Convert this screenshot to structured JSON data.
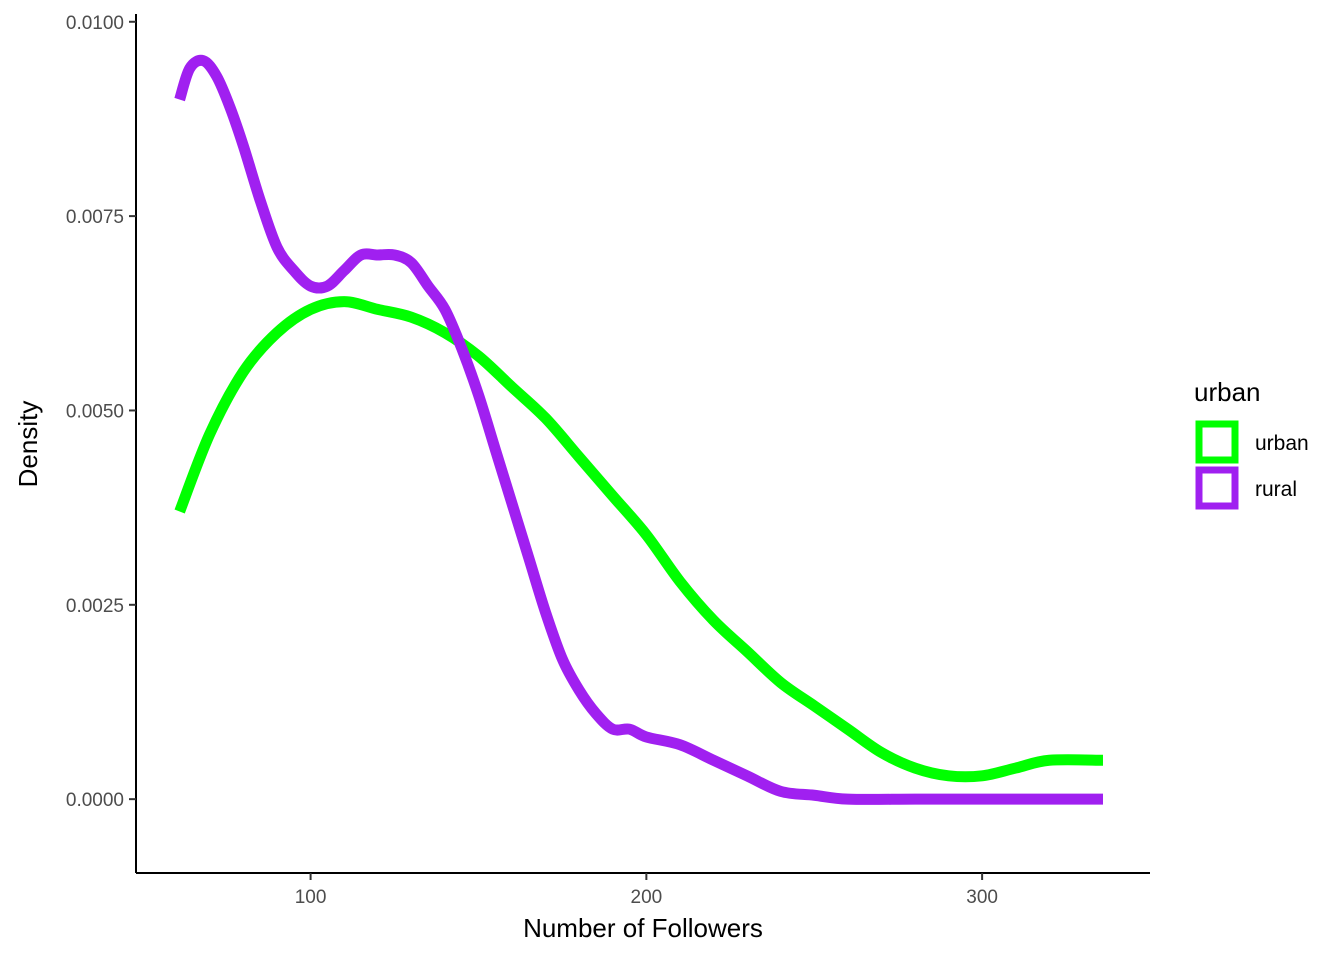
{
  "chart_data": {
    "type": "line",
    "xlabel": "Number of Followers",
    "ylabel": "Density",
    "xlim": [
      48,
      350
    ],
    "ylim": [
      -0.00095,
      0.0101
    ],
    "x_ticks": [
      100,
      200,
      300
    ],
    "x_tick_labels": [
      "100",
      "200",
      "300"
    ],
    "y_ticks": [
      0.0,
      0.0025,
      0.005,
      0.0075,
      0.01
    ],
    "y_tick_labels": [
      "0.0000",
      "0.0025",
      "0.0050",
      "0.0075",
      "0.0100"
    ],
    "grid": false,
    "legend": {
      "title": "urban",
      "placement": "right"
    },
    "series": [
      {
        "name": "urban",
        "color": "#00ff00",
        "x": [
          61,
          70,
          80,
          90,
          100,
          110,
          120,
          130,
          140,
          150,
          160,
          170,
          180,
          190,
          200,
          210,
          220,
          230,
          240,
          250,
          260,
          270,
          280,
          290,
          300,
          310,
          320,
          336
        ],
        "y": [
          0.0037,
          0.0047,
          0.0055,
          0.006,
          0.0063,
          0.0064,
          0.0063,
          0.0062,
          0.006,
          0.0057,
          0.0053,
          0.0049,
          0.0044,
          0.0039,
          0.0034,
          0.0028,
          0.0023,
          0.0019,
          0.0015,
          0.0012,
          0.0009,
          0.0006,
          0.0004,
          0.0003,
          0.0003,
          0.0004,
          0.0005,
          0.0005
        ]
      },
      {
        "name": "rural",
        "color": "#a020f0",
        "x": [
          61,
          64,
          68,
          72,
          76,
          80,
          85,
          90,
          95,
          100,
          105,
          110,
          115,
          120,
          125,
          130,
          135,
          140,
          145,
          150,
          155,
          160,
          165,
          170,
          175,
          180,
          185,
          190,
          195,
          200,
          210,
          220,
          230,
          240,
          250,
          260,
          280,
          300,
          336
        ],
        "y": [
          0.009,
          0.0094,
          0.0095,
          0.0093,
          0.0089,
          0.0084,
          0.0077,
          0.0071,
          0.0068,
          0.0066,
          0.0066,
          0.0068,
          0.007,
          0.007,
          0.007,
          0.0069,
          0.0066,
          0.0063,
          0.0058,
          0.0052,
          0.0045,
          0.0038,
          0.0031,
          0.0024,
          0.0018,
          0.0014,
          0.0011,
          0.0009,
          0.0009,
          0.0008,
          0.0007,
          0.0005,
          0.0003,
          0.0001,
          5e-05,
          0.0,
          0.0,
          0.0,
          0.0
        ]
      }
    ]
  }
}
